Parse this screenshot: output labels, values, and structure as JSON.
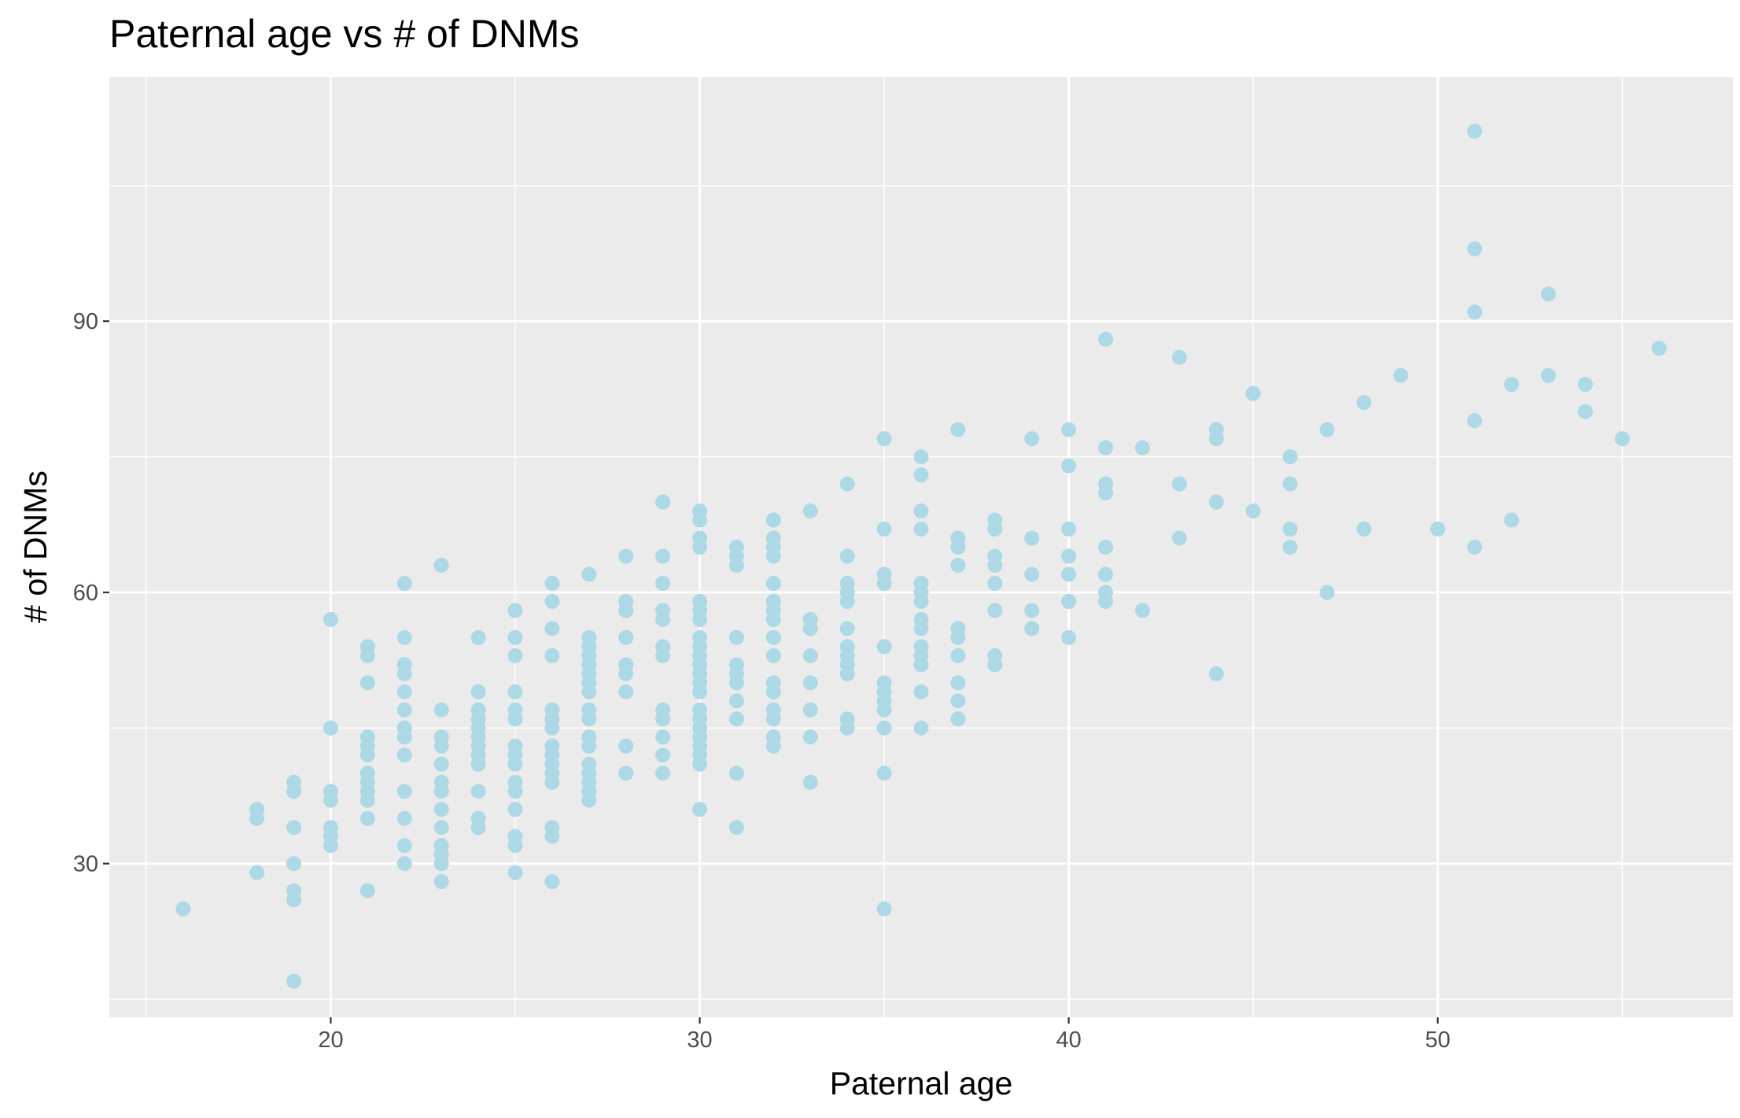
{
  "chart_data": {
    "type": "scatter",
    "title": "Paternal age vs # of DNMs",
    "xlabel": "Paternal age",
    "ylabel": "# of DNMs",
    "xlim": [
      14,
      58
    ],
    "ylim": [
      13,
      117
    ],
    "x_ticks": [
      20,
      30,
      40,
      50
    ],
    "y_ticks": [
      30,
      60,
      90
    ],
    "grid": true,
    "colors": {
      "panel": "#ebebeb",
      "grid": "#ffffff",
      "point": "#add8e6",
      "tick": "#333333"
    },
    "points": [
      [
        16,
        25
      ],
      [
        18,
        36
      ],
      [
        18,
        35
      ],
      [
        18,
        29
      ],
      [
        19,
        39
      ],
      [
        19,
        38
      ],
      [
        19,
        34
      ],
      [
        19,
        30
      ],
      [
        19,
        27
      ],
      [
        19,
        26
      ],
      [
        19,
        17
      ],
      [
        20,
        57
      ],
      [
        20,
        45
      ],
      [
        20,
        38
      ],
      [
        20,
        37
      ],
      [
        20,
        34
      ],
      [
        20,
        33
      ],
      [
        20,
        32
      ],
      [
        21,
        54
      ],
      [
        21,
        53
      ],
      [
        21,
        50
      ],
      [
        21,
        44
      ],
      [
        21,
        43
      ],
      [
        21,
        42
      ],
      [
        21,
        40
      ],
      [
        21,
        39
      ],
      [
        21,
        38
      ],
      [
        21,
        37
      ],
      [
        21,
        35
      ],
      [
        21,
        27
      ],
      [
        22,
        61
      ],
      [
        22,
        55
      ],
      [
        22,
        52
      ],
      [
        22,
        51
      ],
      [
        22,
        49
      ],
      [
        22,
        47
      ],
      [
        22,
        45
      ],
      [
        22,
        44
      ],
      [
        22,
        42
      ],
      [
        22,
        38
      ],
      [
        22,
        35
      ],
      [
        22,
        32
      ],
      [
        22,
        30
      ],
      [
        23,
        63
      ],
      [
        23,
        47
      ],
      [
        23,
        44
      ],
      [
        23,
        43
      ],
      [
        23,
        41
      ],
      [
        23,
        39
      ],
      [
        23,
        38
      ],
      [
        23,
        36
      ],
      [
        23,
        34
      ],
      [
        23,
        32
      ],
      [
        23,
        31
      ],
      [
        23,
        30
      ],
      [
        23,
        28
      ],
      [
        24,
        55
      ],
      [
        24,
        49
      ],
      [
        24,
        47
      ],
      [
        24,
        46
      ],
      [
        24,
        45
      ],
      [
        24,
        44
      ],
      [
        24,
        43
      ],
      [
        24,
        42
      ],
      [
        24,
        41
      ],
      [
        24,
        38
      ],
      [
        24,
        35
      ],
      [
        24,
        34
      ],
      [
        25,
        58
      ],
      [
        25,
        55
      ],
      [
        25,
        53
      ],
      [
        25,
        49
      ],
      [
        25,
        47
      ],
      [
        25,
        46
      ],
      [
        25,
        43
      ],
      [
        25,
        42
      ],
      [
        25,
        41
      ],
      [
        25,
        39
      ],
      [
        25,
        38
      ],
      [
        25,
        36
      ],
      [
        25,
        33
      ],
      [
        25,
        32
      ],
      [
        25,
        29
      ],
      [
        26,
        61
      ],
      [
        26,
        59
      ],
      [
        26,
        56
      ],
      [
        26,
        53
      ],
      [
        26,
        47
      ],
      [
        26,
        46
      ],
      [
        26,
        45
      ],
      [
        26,
        43
      ],
      [
        26,
        42
      ],
      [
        26,
        41
      ],
      [
        26,
        40
      ],
      [
        26,
        39
      ],
      [
        26,
        34
      ],
      [
        26,
        33
      ],
      [
        26,
        28
      ],
      [
        27,
        62
      ],
      [
        27,
        55
      ],
      [
        27,
        54
      ],
      [
        27,
        53
      ],
      [
        27,
        52
      ],
      [
        27,
        51
      ],
      [
        27,
        50
      ],
      [
        27,
        49
      ],
      [
        27,
        47
      ],
      [
        27,
        46
      ],
      [
        27,
        44
      ],
      [
        27,
        43
      ],
      [
        27,
        41
      ],
      [
        27,
        40
      ],
      [
        27,
        39
      ],
      [
        27,
        38
      ],
      [
        27,
        37
      ],
      [
        28,
        64
      ],
      [
        28,
        59
      ],
      [
        28,
        58
      ],
      [
        28,
        55
      ],
      [
        28,
        52
      ],
      [
        28,
        51
      ],
      [
        28,
        49
      ],
      [
        28,
        43
      ],
      [
        28,
        40
      ],
      [
        29,
        70
      ],
      [
        29,
        64
      ],
      [
        29,
        61
      ],
      [
        29,
        58
      ],
      [
        29,
        57
      ],
      [
        29,
        54
      ],
      [
        29,
        53
      ],
      [
        29,
        47
      ],
      [
        29,
        46
      ],
      [
        29,
        44
      ],
      [
        29,
        42
      ],
      [
        29,
        40
      ],
      [
        30,
        69
      ],
      [
        30,
        68
      ],
      [
        30,
        66
      ],
      [
        30,
        65
      ],
      [
        30,
        59
      ],
      [
        30,
        58
      ],
      [
        30,
        57
      ],
      [
        30,
        55
      ],
      [
        30,
        54
      ],
      [
        30,
        53
      ],
      [
        30,
        52
      ],
      [
        30,
        51
      ],
      [
        30,
        50
      ],
      [
        30,
        49
      ],
      [
        30,
        47
      ],
      [
        30,
        46
      ],
      [
        30,
        45
      ],
      [
        30,
        44
      ],
      [
        30,
        43
      ],
      [
        30,
        42
      ],
      [
        30,
        41
      ],
      [
        30,
        36
      ],
      [
        31,
        65
      ],
      [
        31,
        64
      ],
      [
        31,
        63
      ],
      [
        31,
        55
      ],
      [
        31,
        52
      ],
      [
        31,
        51
      ],
      [
        31,
        50
      ],
      [
        31,
        48
      ],
      [
        31,
        46
      ],
      [
        31,
        40
      ],
      [
        31,
        34
      ],
      [
        32,
        68
      ],
      [
        32,
        66
      ],
      [
        32,
        65
      ],
      [
        32,
        64
      ],
      [
        32,
        61
      ],
      [
        32,
        59
      ],
      [
        32,
        58
      ],
      [
        32,
        57
      ],
      [
        32,
        55
      ],
      [
        32,
        53
      ],
      [
        32,
        50
      ],
      [
        32,
        49
      ],
      [
        32,
        47
      ],
      [
        32,
        46
      ],
      [
        32,
        44
      ],
      [
        32,
        43
      ],
      [
        33,
        69
      ],
      [
        33,
        57
      ],
      [
        33,
        56
      ],
      [
        33,
        53
      ],
      [
        33,
        50
      ],
      [
        33,
        47
      ],
      [
        33,
        44
      ],
      [
        33,
        39
      ],
      [
        34,
        72
      ],
      [
        34,
        64
      ],
      [
        34,
        61
      ],
      [
        34,
        60
      ],
      [
        34,
        59
      ],
      [
        34,
        56
      ],
      [
        34,
        54
      ],
      [
        34,
        53
      ],
      [
        34,
        52
      ],
      [
        34,
        51
      ],
      [
        34,
        46
      ],
      [
        34,
        45
      ],
      [
        35,
        77
      ],
      [
        35,
        67
      ],
      [
        35,
        62
      ],
      [
        35,
        61
      ],
      [
        35,
        54
      ],
      [
        35,
        50
      ],
      [
        35,
        49
      ],
      [
        35,
        48
      ],
      [
        35,
        47
      ],
      [
        35,
        45
      ],
      [
        35,
        40
      ],
      [
        35,
        25
      ],
      [
        36,
        75
      ],
      [
        36,
        73
      ],
      [
        36,
        69
      ],
      [
        36,
        67
      ],
      [
        36,
        61
      ],
      [
        36,
        60
      ],
      [
        36,
        59
      ],
      [
        36,
        57
      ],
      [
        36,
        56
      ],
      [
        36,
        54
      ],
      [
        36,
        53
      ],
      [
        36,
        52
      ],
      [
        36,
        49
      ],
      [
        36,
        45
      ],
      [
        37,
        78
      ],
      [
        37,
        66
      ],
      [
        37,
        65
      ],
      [
        37,
        63
      ],
      [
        37,
        56
      ],
      [
        37,
        55
      ],
      [
        37,
        53
      ],
      [
        37,
        50
      ],
      [
        37,
        48
      ],
      [
        37,
        46
      ],
      [
        38,
        68
      ],
      [
        38,
        67
      ],
      [
        38,
        64
      ],
      [
        38,
        63
      ],
      [
        38,
        61
      ],
      [
        38,
        58
      ],
      [
        38,
        53
      ],
      [
        38,
        52
      ],
      [
        39,
        77
      ],
      [
        39,
        66
      ],
      [
        39,
        62
      ],
      [
        39,
        58
      ],
      [
        39,
        56
      ],
      [
        40,
        78
      ],
      [
        40,
        74
      ],
      [
        40,
        67
      ],
      [
        40,
        64
      ],
      [
        40,
        62
      ],
      [
        40,
        59
      ],
      [
        40,
        55
      ],
      [
        41,
        88
      ],
      [
        41,
        76
      ],
      [
        41,
        72
      ],
      [
        41,
        71
      ],
      [
        41,
        65
      ],
      [
        41,
        62
      ],
      [
        41,
        60
      ],
      [
        41,
        59
      ],
      [
        42,
        76
      ],
      [
        42,
        58
      ],
      [
        43,
        86
      ],
      [
        43,
        72
      ],
      [
        43,
        66
      ],
      [
        44,
        78
      ],
      [
        44,
        77
      ],
      [
        44,
        70
      ],
      [
        44,
        51
      ],
      [
        45,
        82
      ],
      [
        45,
        69
      ],
      [
        46,
        75
      ],
      [
        46,
        72
      ],
      [
        46,
        67
      ],
      [
        46,
        65
      ],
      [
        47,
        78
      ],
      [
        47,
        60
      ],
      [
        48,
        81
      ],
      [
        48,
        67
      ],
      [
        49,
        84
      ],
      [
        50,
        67
      ],
      [
        51,
        111
      ],
      [
        51,
        98
      ],
      [
        51,
        91
      ],
      [
        51,
        79
      ],
      [
        51,
        65
      ],
      [
        52,
        83
      ],
      [
        52,
        68
      ],
      [
        53,
        93
      ],
      [
        53,
        84
      ],
      [
        54,
        83
      ],
      [
        54,
        80
      ],
      [
        55,
        77
      ],
      [
        56,
        87
      ]
    ]
  }
}
